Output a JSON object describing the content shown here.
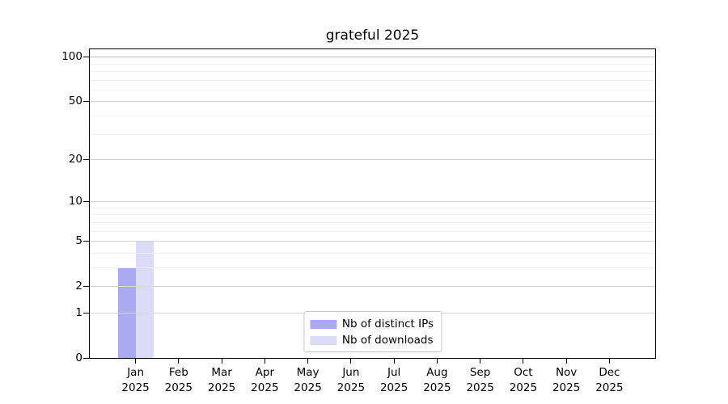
{
  "chart_data": {
    "type": "bar",
    "title": "grateful 2025",
    "categories": [
      "Jan 2025",
      "Feb 2025",
      "Mar 2025",
      "Apr 2025",
      "May 2025",
      "Jun 2025",
      "Jul 2025",
      "Aug 2025",
      "Sep 2025",
      "Oct 2025",
      "Nov 2025",
      "Dec 2025"
    ],
    "x_tick_months": [
      "Jan",
      "Feb",
      "Mar",
      "Apr",
      "May",
      "Jun",
      "Jul",
      "Aug",
      "Sep",
      "Oct",
      "Nov",
      "Dec"
    ],
    "x_tick_year": "2025",
    "series": [
      {
        "name": "Nb of distinct IPs",
        "color": "#a9a9f4",
        "values": [
          3,
          0,
          0,
          0,
          0,
          0,
          0,
          0,
          0,
          0,
          0,
          0
        ]
      },
      {
        "name": "Nb of downloads",
        "color": "#dbdbf8",
        "values": [
          5,
          0,
          0,
          0,
          0,
          0,
          0,
          0,
          0,
          0,
          0,
          0
        ]
      }
    ],
    "y_scale": "log10(1+v)",
    "y_ticks": [
      0,
      1,
      2,
      5,
      10,
      20,
      50,
      100
    ],
    "y_minor_gridlines": [
      3,
      4,
      6,
      7,
      8,
      9,
      30,
      40,
      60,
      70,
      80,
      90
    ],
    "ylim": [
      0,
      113
    ],
    "grid": true,
    "legend_position": "lower center",
    "colors": {
      "grid_major": "#d7d7d7",
      "grid_minor": "#efefef",
      "grid_emphasis_100": "#b9b9b9",
      "axis": "#000000",
      "background": "#ffffff"
    }
  }
}
